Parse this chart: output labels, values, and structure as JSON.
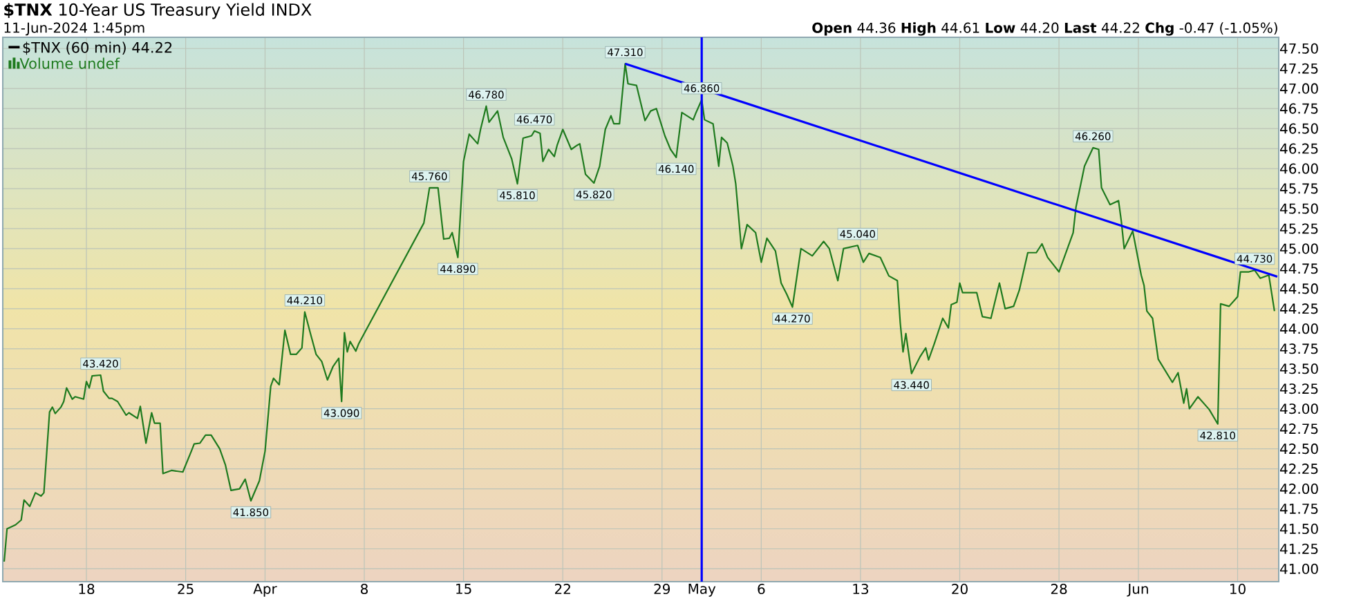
{
  "chart_data": {
    "type": "line",
    "title": "**$TNX** 10-Year US Treasury Yield INDX",
    "subtitle": "11-Jun-2024 1:45pm",
    "annotations": [
      "**Open** 44.36  **High** 44.61  **Low** 44.20  **Last** 44.22  **Chg** -0.47 (-1.05%)",
      "Volume undef",
      {
        "text": "43.420",
        "y": 43.42
      },
      {
        "text": "41.850",
        "y": 41.85
      },
      {
        "text": "44.210",
        "y": 44.21
      },
      {
        "text": "43.090",
        "y": 43.09
      },
      {
        "text": "45.760",
        "y": 45.76
      },
      {
        "text": "44.890",
        "y": 44.89
      },
      {
        "text": "46.780",
        "y": 46.78
      },
      {
        "text": "45.810",
        "y": 45.81
      },
      {
        "text": "46.470",
        "y": 46.47
      },
      {
        "text": "45.820",
        "y": 45.82
      },
      {
        "text": "47.310",
        "y": 47.31
      },
      {
        "text": "46.140",
        "y": 46.14
      },
      {
        "text": "46.860",
        "y": 46.86
      },
      {
        "text": "44.270",
        "y": 44.27
      },
      {
        "text": "45.040",
        "y": 45.04
      },
      {
        "text": "43.440",
        "y": 43.44
      },
      {
        "text": "46.260",
        "y": 46.26
      },
      {
        "text": "42.810",
        "y": 42.81
      },
      {
        "text": "44.730",
        "y": 44.73
      }
    ],
    "categories": [
      null,
      null,
      null,
      null,
      null,
      null,
      null,
      null,
      null,
      null,
      null,
      null,
      null,
      null,
      null,
      null,
      null,
      null,
      null,
      null,
      null,
      null,
      null,
      null,
      null,
      null,
      null,
      null,
      null,
      "18",
      null,
      null,
      null,
      null,
      null,
      null,
      null,
      null,
      null,
      null,
      null,
      null,
      null,
      null,
      null,
      null,
      null,
      null,
      null,
      null,
      null,
      null,
      null,
      null,
      null,
      null,
      null,
      null,
      null,
      null,
      null,
      null,
      null,
      null,
      "25",
      null,
      null,
      null,
      null,
      null,
      null,
      null,
      null,
      null,
      null,
      null,
      null,
      null,
      null,
      null,
      null,
      null,
      null,
      null,
      null,
      null,
      null,
      null,
      null,
      null,
      null,
      null,
      "Apr",
      null,
      null,
      null,
      null,
      null,
      null,
      null,
      null,
      null,
      null,
      null,
      null,
      null,
      null,
      null,
      null,
      null,
      null,
      null,
      null,
      null,
      null,
      null,
      null,
      null,
      null,
      null,
      null,
      null,
      null,
      null,
      null,
      null,
      null,
      "8",
      null,
      null,
      null,
      null,
      null,
      null,
      null,
      null,
      null,
      null,
      null,
      null,
      null,
      null,
      null,
      null,
      null,
      null,
      null,
      null,
      null,
      null,
      null,
      null,
      null,
      null,
      null,
      null,
      null,
      null,
      null,
      null,
      null,
      null,
      "15",
      null,
      null,
      null,
      null,
      null,
      null,
      null,
      null,
      null,
      null,
      null,
      null,
      null,
      null,
      null,
      null,
      null,
      null,
      null,
      null,
      null,
      null,
      null,
      null,
      null,
      null,
      null,
      null,
      null,
      null,
      null,
      null,
      null,
      null,
      "22",
      null,
      null,
      null,
      null,
      null,
      null,
      null,
      null,
      null,
      null,
      null,
      null,
      null,
      null,
      null,
      null,
      null,
      null,
      null,
      null,
      null,
      null,
      null,
      null,
      null,
      null,
      null,
      null,
      null,
      null,
      null,
      null,
      null,
      null,
      "29",
      null,
      null,
      null,
      null,
      null,
      null,
      null,
      null,
      null,
      null,
      null,
      null,
      null,
      "May",
      null,
      null,
      null,
      null,
      null,
      null,
      null,
      null,
      null,
      null,
      null,
      null,
      null,
      null,
      null,
      null,
      null,
      null,
      null,
      null,
      "6",
      null,
      null,
      null,
      null,
      null,
      null,
      null,
      null,
      null,
      null,
      null,
      null,
      null,
      null,
      null,
      null,
      null,
      null,
      null,
      null,
      null,
      null,
      null,
      null,
      null,
      null,
      null,
      null,
      null,
      null,
      null,
      null,
      null,
      null,
      "13",
      null,
      null,
      null,
      null,
      null,
      null,
      null,
      null,
      null,
      null,
      null,
      null,
      null,
      null,
      null,
      null,
      null,
      null,
      null,
      null,
      null,
      null,
      null,
      null,
      null,
      null,
      null,
      null,
      null,
      null,
      null,
      null,
      null,
      null,
      "20",
      null,
      null,
      null,
      null,
      null,
      null,
      null,
      null,
      null,
      null,
      null,
      null,
      null,
      null,
      null,
      null,
      null,
      null,
      null,
      null,
      null,
      null,
      null,
      null,
      null,
      null,
      null,
      null,
      null,
      null,
      null,
      null,
      null,
      null,
      "28",
      null,
      null,
      null,
      null,
      null,
      null,
      null,
      null,
      null,
      null,
      null,
      null,
      null,
      null,
      null,
      null,
      null,
      null,
      null,
      null,
      null,
      null,
      null,
      null,
      null,
      null,
      null,
      "Jun",
      null,
      null,
      null,
      null,
      null,
      null,
      null,
      null,
      null,
      null,
      null,
      null,
      null,
      null,
      null,
      null,
      null,
      null,
      null,
      null,
      null,
      null,
      null,
      null,
      null,
      null,
      null,
      null,
      null,
      null,
      null,
      null,
      null,
      null,
      "10",
      null,
      null,
      null,
      null,
      null,
      null,
      null,
      null,
      null,
      null,
      null,
      null,
      null,
      null
    ],
    "ylim": [
      40.84,
      47.64
    ],
    "yticks": [
      {
        "value": 41.0,
        "label": "41.00"
      },
      {
        "value": 41.25,
        "label": "41.25"
      },
      {
        "value": 41.5,
        "label": "41.50"
      },
      {
        "value": 41.75,
        "label": "41.75"
      },
      {
        "value": 42.0,
        "label": "42.00"
      },
      {
        "value": 42.25,
        "label": "42.25"
      },
      {
        "value": 42.5,
        "label": "42.50"
      },
      {
        "value": 42.75,
        "label": "42.75"
      },
      {
        "value": 43.0,
        "label": "43.00"
      },
      {
        "value": 43.25,
        "label": "43.25"
      },
      {
        "value": 43.5,
        "label": "43.50"
      },
      {
        "value": 43.75,
        "label": "43.75"
      },
      {
        "value": 44.0,
        "label": "44.00"
      },
      {
        "value": 44.25,
        "label": "44.25"
      },
      {
        "value": 44.5,
        "label": "44.50"
      },
      {
        "value": 44.75,
        "label": "44.75"
      },
      {
        "value": 45.0,
        "label": "45.00"
      },
      {
        "value": 45.25,
        "label": "45.25"
      },
      {
        "value": 45.5,
        "label": "45.50"
      },
      {
        "value": 45.75,
        "label": "45.75"
      },
      {
        "value": 46.0,
        "label": "46.00"
      },
      {
        "value": 46.25,
        "label": "46.25"
      },
      {
        "value": 46.5,
        "label": "46.50"
      },
      {
        "value": 46.75,
        "label": "46.75"
      },
      {
        "value": 47.0,
        "label": "47.00"
      },
      {
        "value": 47.25,
        "label": "47.25"
      },
      {
        "value": 47.5,
        "label": "47.50"
      }
    ],
    "grid": true,
    "legend": "top left",
    "marker": "none",
    "line_style": "solid",
    "ref_lines": [
      {
        "axis": "x",
        "value": "May",
        "color": "#0000ff"
      }
    ],
    "series": [
      {
        "name": "$TNX (60 min) 44.22",
        "color": "#1e7a1e",
        "values": [
          41.09,
          41.5,
          null,
          null,
          41.55,
          null,
          41.61,
          41.86,
          null,
          41.78,
          null,
          41.95,
          null,
          41.91,
          41.95,
          null,
          42.96,
          43.02,
          42.94,
          null,
          43.02,
          43.09,
          43.26,
          null,
          43.12,
          43.15,
          null,
          null,
          43.12,
          43.34,
          43.26,
          43.41,
          null,
          null,
          43.42,
          43.22,
          null,
          43.13,
          43.13,
          null,
          43.09,
          null,
          null,
          42.92,
          42.95,
          null,
          null,
          42.88,
          43.03,
          null,
          42.57,
          null,
          42.95,
          42.82,
          null,
          42.82,
          42.19,
          null,
          null,
          42.23,
          null,
          null,
          null,
          42.21,
          null,
          null,
          42.47,
          42.56,
          null,
          42.57,
          null,
          42.67,
          null,
          42.67,
          null,
          null,
          42.5,
          null,
          42.3,
          null,
          41.98,
          null,
          null,
          42.0,
          null,
          42.12,
          null,
          41.85,
          null,
          null,
          42.1,
          null,
          42.47,
          null,
          43.28,
          43.38,
          null,
          43.3,
          null,
          43.98,
          null,
          43.68,
          null,
          43.68,
          null,
          43.76,
          44.21,
          null,
          43.94,
          null,
          43.68,
          null,
          43.59,
          null,
          43.36,
          null,
          43.53,
          null,
          43.63,
          43.09,
          43.95,
          43.71,
          43.84,
          null,
          43.72,
          43.81,
          null,
          null,
          null,
          null,
          null,
          null,
          null,
          null,
          null,
          null,
          null,
          null,
          null,
          null,
          null,
          null,
          null,
          null,
          null,
          null,
          null,
          null,
          45.32,
          null,
          45.76,
          null,
          null,
          45.76,
          null,
          45.12,
          null,
          45.13,
          45.2,
          null,
          44.89,
          null,
          46.09,
          null,
          46.43,
          null,
          null,
          46.31,
          46.49,
          null,
          46.78,
          46.58,
          null,
          null,
          46.72,
          null,
          46.39,
          null,
          null,
          46.12,
          null,
          45.81,
          null,
          46.38,
          null,
          null,
          46.41,
          46.47,
          null,
          46.44,
          46.09,
          null,
          46.24,
          null,
          46.15,
          46.29,
          null,
          46.49,
          null,
          null,
          46.24,
          null,
          46.29,
          46.31,
          null,
          45.93,
          null,
          null,
          45.82,
          null,
          46.03,
          null,
          46.49,
          null,
          46.66,
          46.56,
          null,
          46.56,
          null,
          47.31,
          47.06,
          null,
          null,
          47.04,
          null,
          null,
          46.6,
          null,
          46.72,
          null,
          46.75,
          null,
          null,
          46.41,
          null,
          46.24,
          null,
          46.14,
          null,
          46.7,
          null,
          null,
          null,
          46.61,
          46.7,
          null,
          46.86,
          46.61,
          null,
          null,
          46.56,
          null,
          46.03,
          46.39,
          null,
          46.32,
          null,
          46.03,
          45.81,
          null,
          45.0,
          null,
          45.3,
          null,
          null,
          45.2,
          null,
          44.83,
          null,
          45.13,
          null,
          null,
          44.97,
          null,
          44.57,
          null,
          44.43,
          null,
          44.27,
          null,
          null,
          45.0,
          null,
          null,
          null,
          44.91,
          null,
          null,
          null,
          45.09,
          null,
          45.0,
          null,
          null,
          44.6,
          null,
          45.0,
          null,
          null,
          null,
          null,
          45.04,
          null,
          44.83,
          null,
          44.94,
          null,
          null,
          null,
          44.89,
          null,
          null,
          44.66,
          null,
          null,
          44.6,
          44.08,
          43.71,
          43.94,
          null,
          43.44,
          null,
          null,
          43.65,
          null,
          43.76,
          43.61,
          null,
          43.81,
          null,
          null,
          44.13,
          null,
          44.01,
          44.3,
          null,
          44.33,
          44.57,
          44.45,
          null,
          null,
          null,
          null,
          44.45,
          null,
          44.15,
          null,
          null,
          44.13,
          null,
          null,
          44.57,
          null,
          44.25,
          null,
          null,
          44.28,
          null,
          44.48,
          null,
          null,
          44.95,
          null,
          null,
          44.95,
          null,
          45.06,
          null,
          44.89,
          null,
          null,
          null,
          44.71,
          null,
          null,
          null,
          null,
          45.2,
          45.52,
          null,
          null,
          46.03,
          null,
          null,
          46.26,
          null,
          46.24,
          45.76,
          null,
          null,
          45.55,
          null,
          null,
          45.6,
          45.34,
          45.0,
          null,
          null,
          45.22,
          null,
          null,
          44.67,
          44.54,
          44.22,
          null,
          44.13,
          null,
          43.62,
          null,
          null,
          null,
          null,
          43.33,
          null,
          43.45,
          null,
          43.07,
          43.25,
          43.0,
          null,
          null,
          43.15,
          null,
          null,
          null,
          42.99,
          null,
          null,
          42.81,
          44.31,
          null,
          null,
          44.28,
          null,
          null,
          44.4,
          44.71,
          null,
          null,
          44.71,
          null,
          44.73,
          null,
          44.63,
          null,
          null,
          44.67,
          null,
          44.22,
          null
        ]
      },
      {
        "type": "line",
        "color": "#0000ff",
        "values": [
          null,
          null,
          null,
          null,
          null,
          null,
          null,
          null,
          null,
          null,
          null,
          null,
          null,
          null,
          null,
          null,
          null,
          null,
          null,
          null,
          null,
          null,
          null,
          null,
          null,
          null,
          null,
          null,
          null,
          null,
          null,
          null,
          null,
          null,
          null,
          null,
          null,
          null,
          null,
          null,
          null,
          null,
          null,
          null,
          null,
          null,
          null,
          null,
          null,
          null,
          null,
          null,
          null,
          null,
          null,
          null,
          null,
          null,
          null,
          null,
          null,
          null,
          null,
          null,
          null,
          null,
          null,
          null,
          null,
          null,
          null,
          null,
          null,
          null,
          null,
          null,
          null,
          null,
          null,
          null,
          null,
          null,
          null,
          null,
          null,
          null,
          null,
          null,
          null,
          null,
          null,
          null,
          null,
          null,
          null,
          null,
          null,
          null,
          null,
          null,
          null,
          null,
          null,
          null,
          null,
          null,
          null,
          null,
          null,
          null,
          null,
          null,
          null,
          null,
          null,
          null,
          null,
          null,
          null,
          null,
          null,
          null,
          null,
          null,
          null,
          null,
          null,
          null,
          null,
          null,
          null,
          null,
          null,
          null,
          null,
          null,
          null,
          null,
          null,
          null,
          null,
          null,
          null,
          null,
          null,
          null,
          null,
          null,
          null,
          null,
          null,
          null,
          null,
          null,
          null,
          null,
          null,
          null,
          null,
          null,
          null,
          null,
          null,
          null,
          null,
          null,
          null,
          null,
          null,
          null,
          null,
          null,
          null,
          null,
          null,
          null,
          null,
          null,
          null,
          null,
          null,
          null,
          null,
          null,
          null,
          null,
          null,
          null,
          null,
          null,
          null,
          null,
          null,
          null,
          null,
          null,
          null,
          null,
          null,
          null,
          null,
          null,
          null,
          null,
          null,
          null,
          null,
          null,
          null,
          null,
          null,
          null,
          null,
          null,
          null,
          null,
          null,
          null,
          null,
          47.31,
          null,
          null,
          null,
          null,
          null,
          null,
          null,
          null,
          null,
          null,
          null,
          null,
          null,
          null,
          null,
          null,
          null,
          null,
          null,
          null,
          null,
          null,
          null,
          null,
          null,
          null,
          null,
          null,
          null,
          null,
          null,
          null,
          null,
          null,
          null,
          null,
          null,
          null,
          null,
          null,
          null,
          null,
          null,
          null,
          null,
          null,
          null,
          null,
          null,
          null,
          null,
          null,
          null,
          null,
          null,
          null,
          null,
          null,
          null,
          null,
          null,
          null,
          null,
          null,
          null,
          null,
          null,
          null,
          null,
          null,
          null,
          null,
          null,
          null,
          null,
          null,
          null,
          null,
          null,
          null,
          null,
          null,
          null,
          null,
          null,
          null,
          null,
          null,
          null,
          null,
          null,
          null,
          null,
          null,
          null,
          null,
          null,
          null,
          null,
          null,
          null,
          null,
          null,
          null,
          null,
          null,
          null,
          null,
          null,
          null,
          null,
          null,
          null,
          null,
          null,
          null,
          null,
          null,
          null,
          null,
          null,
          null,
          null,
          null,
          null,
          null,
          null,
          null,
          null,
          null,
          null,
          null,
          null,
          null,
          null,
          null,
          null,
          null,
          null,
          null,
          null,
          null,
          null,
          null,
          null,
          null,
          null,
          null,
          null,
          null,
          null,
          null,
          null,
          null,
          null,
          null,
          null,
          null,
          null,
          null,
          null,
          null,
          null,
          null,
          null,
          null,
          null,
          null,
          null,
          null,
          null,
          null,
          null,
          null,
          null,
          null,
          null,
          null,
          null,
          null,
          null,
          null,
          null,
          null,
          null,
          null,
          null,
          null,
          null,
          null,
          null,
          null,
          null,
          null,
          null,
          null,
          null,
          null,
          null,
          null,
          null,
          null,
          null,
          null,
          null,
          null,
          null,
          null,
          null,
          null,
          null,
          null,
          null,
          null,
          null,
          null,
          null,
          null,
          null,
          null,
          null,
          null,
          null,
          null,
          null,
          null,
          null,
          null,
          null,
          44.65
        ]
      }
    ]
  }
}
